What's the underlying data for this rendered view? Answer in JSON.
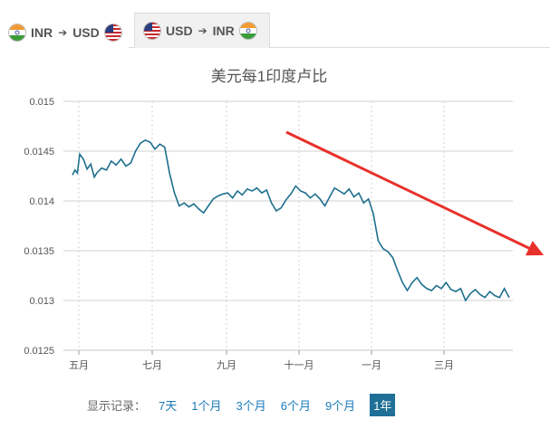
{
  "tabs": [
    {
      "from": "INR",
      "to": "USD",
      "from_flag": "india-flag-icon",
      "to_flag": "usa-flag-icon",
      "active": true
    },
    {
      "from": "USD",
      "to": "INR",
      "from_flag": "usa-flag-icon",
      "to_flag": "india-flag-icon",
      "active": false
    }
  ],
  "colors": {
    "line": "#1d6f8e",
    "grid": "#d0d0d0",
    "trend_arrow": "#e8302a",
    "active_range": "#1f6f96",
    "link": "#1a7bb9"
  },
  "range_selector": {
    "label": "显示记录：",
    "options": [
      "7天",
      "1个月",
      "3个月",
      "6个月",
      "9个月",
      "1年"
    ],
    "active": "1年"
  },
  "chart_data": {
    "type": "line",
    "title": "美元每1印度卢比",
    "xlabel": "",
    "ylabel": "",
    "ylim": [
      0.0125,
      0.015
    ],
    "yticks": [
      "0.015",
      "0.0145",
      "0.014",
      "0.0135",
      "0.013",
      "0.0125"
    ],
    "xticks": [
      "五月",
      "七月",
      "九月",
      "十一月",
      "一月",
      "三月"
    ],
    "grid": true,
    "annotation": "red-trend-arrow",
    "series": [
      {
        "x": [
          0,
          2,
          4,
          6,
          9,
          12,
          15,
          18,
          20,
          24,
          28,
          32,
          36,
          40,
          44,
          48,
          52,
          56,
          60,
          64,
          68,
          72,
          76,
          80,
          84,
          88,
          92,
          96,
          100,
          104,
          108,
          112,
          116,
          120,
          124,
          128,
          132,
          136,
          140,
          144,
          148,
          152,
          156,
          160,
          164,
          168,
          172,
          176,
          180,
          184,
          188,
          192,
          196,
          200,
          204,
          208,
          212,
          216,
          220,
          224,
          228,
          232,
          236,
          240,
          244,
          248,
          252,
          256,
          260,
          264,
          268,
          272,
          276,
          280,
          284,
          288,
          292,
          296,
          300,
          304,
          308,
          312,
          316,
          320,
          324,
          328,
          332,
          336,
          340,
          344,
          348,
          352,
          356,
          360
        ],
        "values": [
          0.01426,
          0.01431,
          0.01428,
          0.01447,
          0.01442,
          0.01432,
          0.01437,
          0.01424,
          0.01428,
          0.01433,
          0.01431,
          0.0144,
          0.01436,
          0.01442,
          0.01435,
          0.01438,
          0.0145,
          0.01458,
          0.01461,
          0.01459,
          0.01452,
          0.01457,
          0.01454,
          0.01428,
          0.01408,
          0.01395,
          0.01398,
          0.01394,
          0.01397,
          0.01392,
          0.01388,
          0.01395,
          0.01402,
          0.01405,
          0.01407,
          0.01408,
          0.01403,
          0.0141,
          0.01406,
          0.01412,
          0.0141,
          0.01413,
          0.01408,
          0.01411,
          0.01398,
          0.0139,
          0.01393,
          0.01401,
          0.01407,
          0.01415,
          0.0141,
          0.01408,
          0.01403,
          0.01407,
          0.01402,
          0.01395,
          0.01404,
          0.01413,
          0.0141,
          0.01407,
          0.01412,
          0.01404,
          0.01408,
          0.01398,
          0.01402,
          0.01387,
          0.0136,
          0.01352,
          0.01349,
          0.01343,
          0.0133,
          0.01318,
          0.0131,
          0.01318,
          0.01323,
          0.01316,
          0.01312,
          0.0131,
          0.01315,
          0.01312,
          0.01318,
          0.01311,
          0.01309,
          0.01312,
          0.013,
          0.01307,
          0.01311,
          0.01306,
          0.01303,
          0.01309,
          0.01305,
          0.01303,
          0.01312,
          0.01303
        ]
      }
    ]
  }
}
